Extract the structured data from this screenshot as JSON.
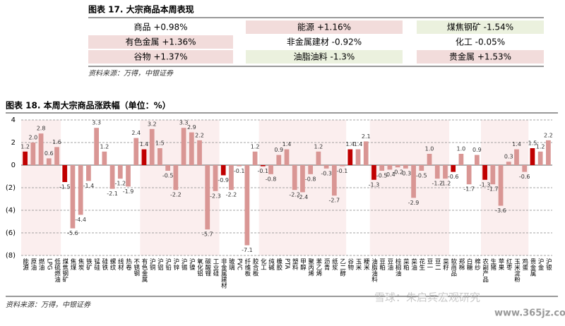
{
  "table": {
    "title": "图表 17. 大宗商品本周表现",
    "rows": [
      [
        {
          "text": "商品 +0.98%",
          "color": "#ffffff"
        },
        {
          "text": "能源 +1.16%",
          "color": "#f2dcdb"
        },
        {
          "text": "煤焦钢矿 -1.54%",
          "color": "#ebf1de"
        }
      ],
      [
        {
          "text": "有色金属 +1.36%",
          "color": "#f2dcdb"
        },
        {
          "text": "非金属建材 -0.92%",
          "color": "#ffffff"
        },
        {
          "text": "化工 -0.05%",
          "color": "#ffffff"
        }
      ],
      [
        {
          "text": "谷物 +1.37%",
          "color": "#f2dcdb"
        },
        {
          "text": "油脂油料 -1.3%",
          "color": "#ebf1de"
        },
        {
          "text": "贵金属 +1.53%",
          "color": "#f2dcdb"
        }
      ]
    ],
    "source": "资料来源：万得，中银证券"
  },
  "chart_data": {
    "type": "bar",
    "title": "图表 18. 本周大宗商品涨跌幅（单位：%）",
    "categories": [
      "能源",
      "原油",
      "燃油",
      "LPG",
      "低硫燃油",
      "煤焦钢矿",
      "焦煤",
      "焦炭",
      "铁矿",
      "锰硅",
      "硅铁",
      "螺纹",
      "线材",
      "热卷",
      "不锈钢",
      "有色金属",
      "沪铜",
      "沪铝",
      "沪铅",
      "沪锌",
      "沪锡",
      "沪镍",
      "氧化铝",
      "碳酸锂",
      "工业硅",
      "非金属建材",
      "玻璃",
      "PVC",
      "纤维板",
      "胶合板",
      "化工",
      "纯碱",
      "橡胶",
      "PTA",
      "塑料",
      "甲醇",
      "聚丙烯",
      "苯乙烯",
      "沥青",
      "纸浆",
      "乙二醇",
      "谷物",
      "玉米",
      "粳米",
      "油脂油料",
      "豆粕",
      "豆油",
      "棕榈油",
      "菜粕",
      "菜油",
      "花生",
      "豆一",
      "豆二",
      "菜籽",
      "软商品",
      "郑棉",
      "白糖",
      "棉纱",
      "农副产品",
      "生猪",
      "苹果",
      "红枣",
      "玉米淀粉",
      "鸡蛋",
      "贵金属",
      "沪金",
      "沪银"
    ],
    "values": [
      1.2,
      2.0,
      2.8,
      0.6,
      1.6,
      -1.5,
      -5.6,
      -4.4,
      -1.4,
      3.3,
      1.2,
      -2.1,
      -1.2,
      -1.9,
      2.4,
      1.4,
      3.2,
      1.5,
      -0.5,
      -2.2,
      3.3,
      2.9,
      2.2,
      -5.7,
      -2.3,
      -0.9,
      -2.2,
      -0.1,
      -7.1,
      1.2,
      -0.1,
      -0.8,
      0.9,
      1.4,
      -2.2,
      -2.4,
      -0.8,
      1.2,
      -0.3,
      -2.7,
      -0.1,
      1.4,
      1.4,
      2.1,
      -1.3,
      -0.5,
      -0.4,
      -0.2,
      -0.3,
      -2.9,
      -0.5,
      1.0,
      -1.2,
      -1.2,
      -0.6,
      1.0,
      -1.7,
      0.9,
      -1.3,
      -1.7,
      -3.6,
      0.3,
      1.4,
      -0.6,
      1.5,
      1.2,
      2.2
    ],
    "value_labels": [
      "1.2",
      "2.0",
      "2.8",
      "0.6",
      "1.6",
      "-1.5",
      "-5.6",
      "-4.4",
      "-1.4",
      "3.3",
      "1.2",
      "-2.1",
      "-1.2",
      "-1.9",
      "2.4",
      "1.4",
      "3.2",
      "1.5",
      "-0.5",
      "-2.2",
      "3.3",
      "2.9",
      "2.2",
      "-5.7",
      "-2.3",
      "-0.9",
      "-2.2",
      "-0.1",
      "-7.1",
      "1.2",
      "-0.1",
      "-0.8",
      "0.9",
      "1.4",
      "-2.2",
      "-2.4",
      "-0.8",
      "1.2",
      "-0.3",
      "-2.7",
      "-0.1",
      "1.4",
      "1.4",
      "2.1",
      "-1.3",
      "-0.5",
      "-0.4",
      "-0.2",
      "-0.3",
      "-2.9",
      "-0.5",
      "1.0",
      "-1.2",
      "-1.2",
      "-0.6",
      "1.0",
      "-1.7",
      "0.9",
      "-1.3",
      "-1.7",
      "-3.6",
      "0.3",
      "1.4",
      "-0.6",
      "1.5",
      "1.2",
      "2.2"
    ],
    "colors": [
      "#c00000",
      "#d99694",
      "#d99694",
      "#d99694",
      "#d99694",
      "#c00000",
      "#d99694",
      "#d99694",
      "#d99694",
      "#d99694",
      "#d99694",
      "#d99694",
      "#d99694",
      "#d99694",
      "#d99694",
      "#c00000",
      "#d99694",
      "#d99694",
      "#d99694",
      "#d99694",
      "#d99694",
      "#d99694",
      "#d99694",
      "#d99694",
      "#d99694",
      "#c00000",
      "#d99694",
      "#d99694",
      "#d99694",
      "#d99694",
      "#c00000",
      "#d99694",
      "#d99694",
      "#d99694",
      "#d99694",
      "#d99694",
      "#d99694",
      "#d99694",
      "#d99694",
      "#d99694",
      "#d99694",
      "#c00000",
      "#d99694",
      "#d99694",
      "#c00000",
      "#d99694",
      "#d99694",
      "#d99694",
      "#d99694",
      "#d99694",
      "#d99694",
      "#d99694",
      "#d99694",
      "#d99694",
      "#c00000",
      "#d99694",
      "#d99694",
      "#d99694",
      "#c00000",
      "#d99694",
      "#d99694",
      "#d99694",
      "#d99694",
      "#d99694",
      "#c00000",
      "#d99694",
      "#d99694"
    ],
    "ylim": [
      -8,
      4
    ],
    "yticks": [
      {
        "value": -8,
        "label": "(8)"
      },
      {
        "value": -6,
        "label": "(6)"
      },
      {
        "value": -4,
        "label": "(4)"
      },
      {
        "value": -2,
        "label": "(2)"
      },
      0,
      2,
      4
    ],
    "grid": true,
    "source": "资料来源：万得，中银证券"
  },
  "watermark": [
    "雪球：朱启兵宏观研究",
    "www.365jz.com"
  ]
}
